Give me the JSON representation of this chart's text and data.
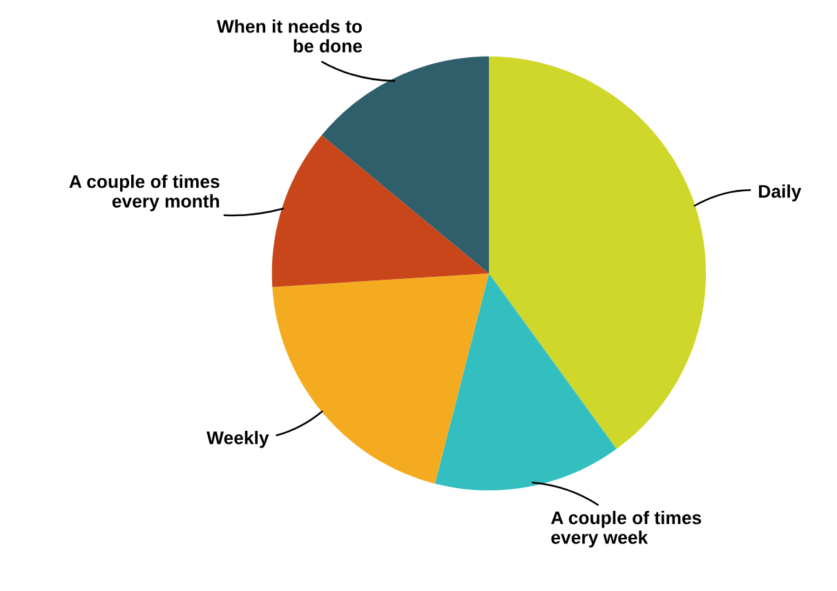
{
  "chart_data": {
    "type": "pie",
    "categories": [
      "Daily",
      "A couple of times\nevery week",
      "Weekly",
      "A couple of times\nevery month",
      "When it needs to\nbe done"
    ],
    "values": [
      40,
      14,
      20,
      12,
      14
    ],
    "colors": [
      "#cfd72b",
      "#33bfc0",
      "#f5ab1f",
      "#c9461a",
      "#2e5f6b"
    ],
    "legend": false
  }
}
